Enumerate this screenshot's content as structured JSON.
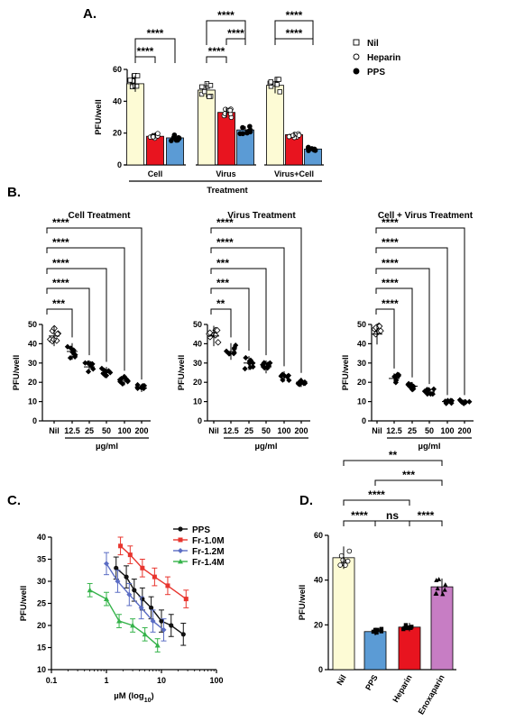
{
  "panel_labels": [
    "A.",
    "B.",
    "C.",
    "D."
  ],
  "chart_data": [
    {
      "panel": "A.",
      "type": "bar",
      "ylabel": "PFU/well",
      "xlabel": "Treatment",
      "ylim": [
        0,
        60
      ],
      "yticks": [
        0,
        20,
        40,
        60
      ],
      "categories": [
        "Cell",
        "Virus",
        "Virus+Cell"
      ],
      "series": [
        {
          "name": "Nil",
          "color": "#fdfbd5",
          "marker": "square",
          "values": [
            51,
            47,
            50
          ]
        },
        {
          "name": "Heparin",
          "color": "#e8141f",
          "marker": "circle-open",
          "values": [
            18,
            33,
            19
          ]
        },
        {
          "name": "PPS",
          "color": "#5b9bd5",
          "marker": "circle-filled",
          "values": [
            17,
            22,
            10
          ]
        }
      ],
      "significance": [
        {
          "group": "Cell",
          "from": "Nil",
          "to": "Heparin",
          "label": "****"
        },
        {
          "group": "Cell",
          "from": "Nil",
          "to": "PPS",
          "label": "****"
        },
        {
          "group": "Virus",
          "from": "Nil",
          "to": "Heparin",
          "label": "****"
        },
        {
          "group": "Virus",
          "from": "Nil",
          "to": "PPS",
          "label": "****"
        },
        {
          "group": "Virus",
          "from": "Heparin",
          "to": "PPS",
          "label": "****"
        },
        {
          "group": "Virus+Cell",
          "from": "Nil",
          "to": "PPS",
          "label": "****"
        },
        {
          "group": "Virus+Cell",
          "from": "Heparin",
          "to": "PPS",
          "label": "****"
        }
      ],
      "legend_position": "right"
    },
    {
      "panel": "B.",
      "type": "scatter",
      "title": "Cell Treatment",
      "ylabel": "PFU/well",
      "xlabel": "µg/ml",
      "ylim": [
        0,
        50
      ],
      "yticks": [
        0,
        10,
        20,
        30,
        40,
        50
      ],
      "categories": [
        "Nil",
        "12.5",
        "25",
        "50",
        "100",
        "200"
      ],
      "means": [
        44,
        36,
        28,
        25,
        21,
        17
      ],
      "significance": [
        "***",
        "****",
        "****",
        "****",
        "****"
      ]
    },
    {
      "panel": "B.",
      "type": "scatter",
      "title": "Virus Treatment",
      "ylabel": "PFU/well",
      "xlabel": "µg/ml",
      "ylim": [
        0,
        50
      ],
      "yticks": [
        0,
        10,
        20,
        30,
        40,
        50
      ],
      "categories": [
        "Nil",
        "12.5",
        "25",
        "50",
        "100",
        "200"
      ],
      "means": [
        44,
        36,
        30,
        28,
        23,
        20
      ],
      "significance": [
        "**",
        "***",
        "***",
        "****",
        "****"
      ]
    },
    {
      "panel": "B.",
      "type": "scatter",
      "title": "Cell + Virus Treatment",
      "ylabel": "PFU/well",
      "xlabel": "µg/ml",
      "ylim": [
        0,
        50
      ],
      "yticks": [
        0,
        10,
        20,
        30,
        40,
        50
      ],
      "categories": [
        "Nil",
        "12.5",
        "25",
        "50",
        "100",
        "200"
      ],
      "means": [
        45,
        22,
        18,
        15,
        10,
        10
      ],
      "significance": [
        "****",
        "****",
        "****",
        "****",
        "****"
      ]
    },
    {
      "panel": "C.",
      "type": "line",
      "ylabel": "PFU/well",
      "xlabel": "µM (log10)",
      "xscale": "log",
      "xlim": [
        0.1,
        100
      ],
      "xticks": [
        "0.1",
        "1",
        "10",
        "100"
      ],
      "ylim": [
        10,
        40
      ],
      "yticks": [
        10,
        15,
        20,
        25,
        30,
        35,
        40
      ],
      "series": [
        {
          "name": "PPS",
          "color": "#111111",
          "x": [
            1.5,
            2.3,
            3.2,
            4.5,
            6.5,
            10,
            15,
            25
          ],
          "y": [
            33,
            31,
            28,
            26,
            24,
            21,
            20,
            18
          ],
          "err": 2.5
        },
        {
          "name": "Fr-1.0M",
          "color": "#e8352e",
          "x": [
            1.8,
            2.7,
            4.5,
            7.5,
            13,
            28
          ],
          "y": [
            38,
            36,
            33,
            31,
            29,
            26
          ],
          "err": 2.0
        },
        {
          "name": "Fr-1.2M",
          "color": "#5b6dc4",
          "x": [
            1,
            1.6,
            2.6,
            4.3,
            7,
            11
          ],
          "y": [
            34,
            30,
            27,
            24,
            21,
            19
          ],
          "err": 2.5
        },
        {
          "name": "Fr-1.4M",
          "color": "#35b34a",
          "x": [
            0.5,
            1,
            1.7,
            3,
            5,
            8.5
          ],
          "y": [
            28,
            26,
            21,
            20,
            18,
            15.5
          ],
          "err": 1.5
        }
      ],
      "legend_position": "top-right"
    },
    {
      "panel": "D.",
      "type": "bar",
      "ylabel": "PFU/well",
      "ylim": [
        0,
        60
      ],
      "yticks": [
        0,
        20,
        40,
        60
      ],
      "categories": [
        "Nil",
        "PPS",
        "Heparin",
        "Enoxaparin"
      ],
      "colors": [
        "#fdfbd5",
        "#5b9bd5",
        "#e8141f",
        "#c77dc4"
      ],
      "values": [
        50,
        17,
        19,
        37
      ],
      "significance": [
        {
          "from": "Nil",
          "to": "PPS",
          "label": "****"
        },
        {
          "from": "PPS",
          "to": "Heparin",
          "label": "ns"
        },
        {
          "from": "Heparin",
          "to": "Enoxaparin",
          "label": "****"
        },
        {
          "from": "Nil",
          "to": "Heparin",
          "label": "****"
        },
        {
          "from": "PPS",
          "to": "Enoxaparin",
          "label": "***"
        },
        {
          "from": "Nil",
          "to": "Enoxaparin",
          "label": "**"
        }
      ]
    }
  ]
}
